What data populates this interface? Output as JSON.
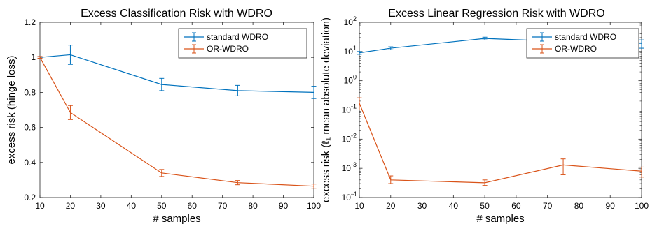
{
  "chart_data": [
    {
      "type": "line",
      "title": "Excess Classification Risk with WDRO",
      "xlabel": "# samples",
      "ylabel": "excess risk (hinge loss)",
      "xlim": [
        10,
        100
      ],
      "ylim": [
        0.2,
        1.2
      ],
      "xticks": [
        "10",
        "20",
        "30",
        "40",
        "50",
        "60",
        "70",
        "80",
        "90",
        "100"
      ],
      "yticks": [
        "0.2",
        "0.4",
        "0.6",
        "0.8",
        "1",
        "1.2"
      ],
      "yscale": "linear",
      "legend_position": "top-right",
      "x": [
        10,
        20,
        50,
        75,
        100
      ],
      "series": [
        {
          "name": "standard WDRO",
          "color": "#0072BD",
          "values": [
            1.0,
            1.015,
            0.845,
            0.81,
            0.8
          ],
          "err": [
            0.005,
            0.055,
            0.035,
            0.03,
            0.035
          ]
        },
        {
          "name": "OR-WDRO",
          "color": "#D95319",
          "values": [
            1.0,
            0.685,
            0.34,
            0.285,
            0.265
          ],
          "err": [
            0.005,
            0.04,
            0.02,
            0.012,
            0.012
          ]
        }
      ]
    },
    {
      "type": "line",
      "title": "Excess Linear Regression Risk with WDRO",
      "xlabel": "# samples",
      "ylabel": "excess risk (ℓ₁ mean absolute deviation)",
      "xlim": [
        10,
        100
      ],
      "ylim": [
        0.0001,
        100
      ],
      "xticks": [
        "10",
        "20",
        "30",
        "40",
        "50",
        "60",
        "70",
        "80",
        "90",
        "100"
      ],
      "yticks": [
        "10",
        "10",
        "10",
        "10",
        "10",
        "10",
        "10"
      ],
      "ytick_exponents": [
        "-4",
        "-3",
        "-2",
        "-1",
        "0",
        "1",
        "2"
      ],
      "yscale": "log",
      "legend_position": "top-right",
      "x": [
        10,
        20,
        50,
        75,
        100
      ],
      "series": [
        {
          "name": "standard WDRO",
          "color": "#0072BD",
          "values": [
            9,
            13,
            28,
            22,
            19
          ],
          "lo": [
            8,
            11.5,
            25,
            14,
            13
          ],
          "hi": [
            10,
            14.5,
            31,
            30,
            25
          ]
        },
        {
          "name": "OR-WDRO",
          "color": "#D95319",
          "values": [
            0.17,
            0.0004,
            0.00032,
            0.0013,
            0.0008
          ],
          "lo": [
            0.1,
            0.0003,
            0.00026,
            0.0006,
            0.0005
          ],
          "hi": [
            0.26,
            0.00055,
            0.0004,
            0.0021,
            0.0011
          ]
        }
      ]
    }
  ]
}
